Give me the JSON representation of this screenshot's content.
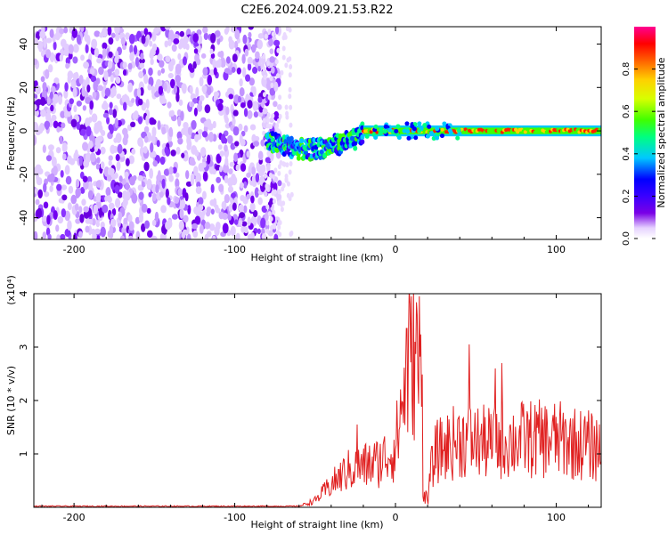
{
  "title": "C2E6.2024.009.21.53.R22",
  "chart_data": [
    {
      "type": "heatmap",
      "title": "C2E6.2024.009.21.53.R22",
      "xlabel": "Height of straight line (km)",
      "ylabel": "Frequency (Hz)",
      "xlim": [
        -225,
        128
      ],
      "ylim": [
        -50,
        48
      ],
      "xticks": [
        -200,
        -100,
        0,
        100
      ],
      "yticks": [
        -40,
        -20,
        0,
        20,
        40
      ],
      "colorbar": {
        "label": "Normalized spectral amplitude",
        "range": [
          0,
          1
        ],
        "ticks": [
          "0.0",
          "0.2",
          "0.4",
          "0.6",
          "0.8"
        ],
        "colors": [
          "#ffffff",
          "#e6d2ff",
          "#7a00e6",
          "#3a00ff",
          "#0000ff",
          "#00c8ff",
          "#00ff80",
          "#40ff00",
          "#d8ff00",
          "#ffd000",
          "#ff6000",
          "#ff0000",
          "#ff0090"
        ]
      },
      "regions": [
        {
          "x_range": [
            -225,
            -80
          ],
          "freq_range": [
            -50,
            48
          ],
          "amplitude": 0.12,
          "description": "broadband noise"
        },
        {
          "x_range": [
            -80,
            -20
          ],
          "center_freq": [
            [
              -80,
              -5
            ],
            [
              -55,
              -9
            ],
            [
              -40,
              -7
            ],
            [
              -25,
              -4
            ],
            [
              -20,
              -1
            ]
          ],
          "amplitude": 0.35
        },
        {
          "x_range": [
            -20,
            128
          ],
          "center_freq": 0,
          "amplitude": 0.85
        }
      ]
    },
    {
      "type": "line",
      "xlabel": "Height of straight line (km)",
      "ylabel": "SNR (10 * v/v)",
      "y_multiplier_label": "(x10⁴)",
      "xlim": [
        -225,
        128
      ],
      "ylim": [
        0,
        4
      ],
      "xticks": [
        -200,
        -100,
        0,
        100
      ],
      "yticks": [
        1,
        2,
        3,
        4
      ],
      "color": "#e02020",
      "envelope": [
        {
          "x": -225,
          "y": 0.02
        },
        {
          "x": -60,
          "y": 0.02
        },
        {
          "x": -50,
          "y": 0.15
        },
        {
          "x": -40,
          "y": 0.5
        },
        {
          "x": -30,
          "y": 0.8
        },
        {
          "x": -20,
          "y": 0.9
        },
        {
          "x": -10,
          "y": 1.0
        },
        {
          "x": 0,
          "y": 1.3
        },
        {
          "x": 5,
          "y": 2.5
        },
        {
          "x": 10,
          "y": 3.5
        },
        {
          "x": 15,
          "y": 3.2
        },
        {
          "x": 20,
          "y": 0.5
        },
        {
          "x": 25,
          "y": 1.2
        },
        {
          "x": 40,
          "y": 1.5
        },
        {
          "x": 60,
          "y": 1.4
        },
        {
          "x": 80,
          "y": 1.5
        },
        {
          "x": 100,
          "y": 1.5
        },
        {
          "x": 128,
          "y": 1.3
        }
      ],
      "peaks": [
        {
          "x": 7,
          "y": 3.35
        },
        {
          "x": 10,
          "y": 3.95
        },
        {
          "x": 15,
          "y": 3.95
        },
        {
          "x": 46,
          "y": 3.05
        },
        {
          "x": 62,
          "y": 2.6
        },
        {
          "x": 66,
          "y": 2.7
        },
        {
          "x": -24,
          "y": 1.55
        }
      ]
    }
  ]
}
